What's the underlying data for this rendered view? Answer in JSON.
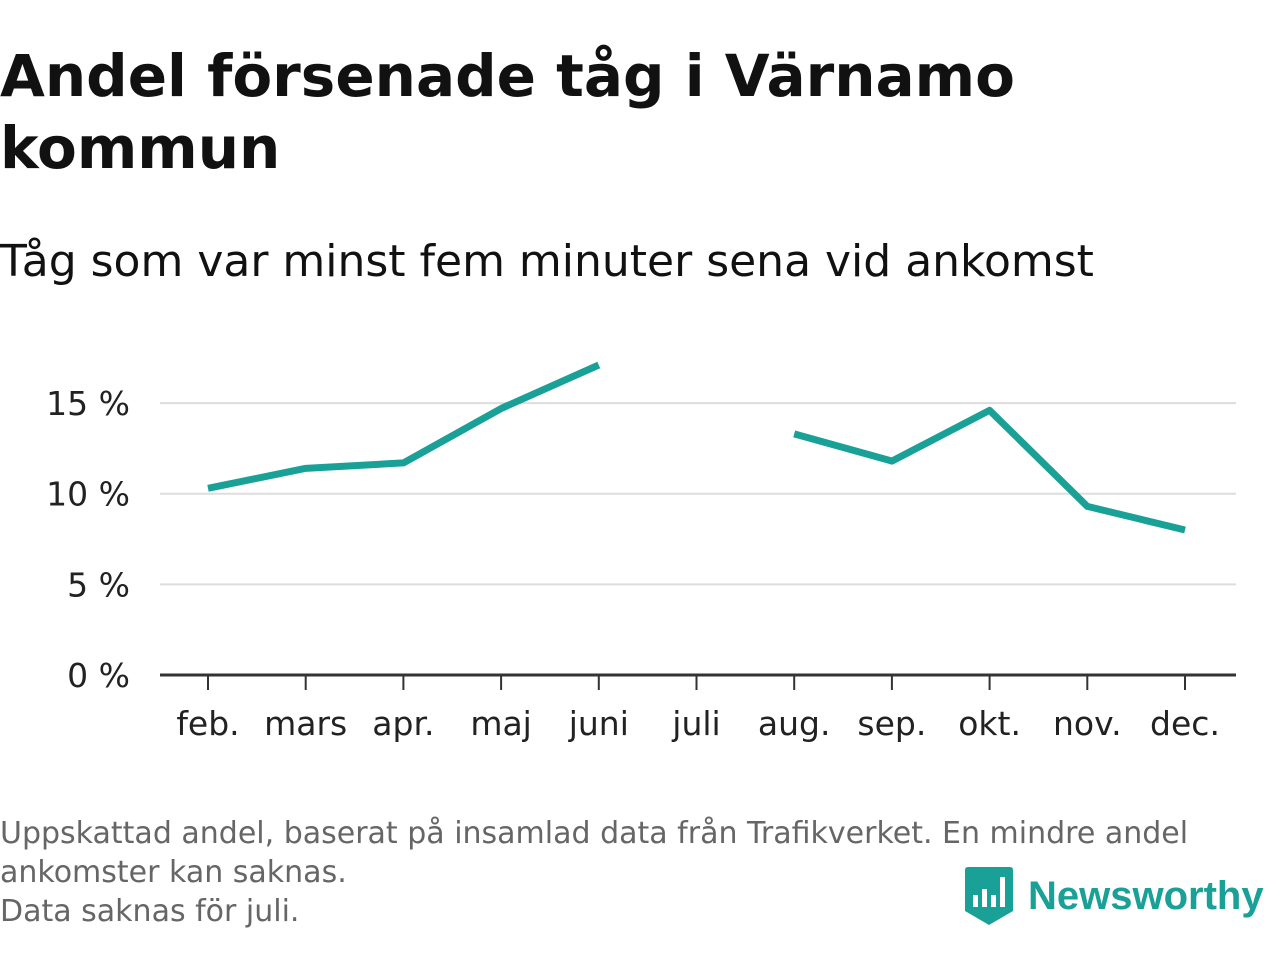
{
  "title": "Andel försenade tåg i Värnamo kommun",
  "subtitle": "Tåg som var minst fem minuter sena vid ankomst",
  "footer": {
    "line1": "Uppskattad andel, baserat på insamlad data från Trafikverket. En mindre andel",
    "line2": "ankomster kan saknas.",
    "line3": "Data saknas för juli."
  },
  "brand": {
    "name": "Newsworthy",
    "icon": "newsworthy-logo-icon",
    "color": "#1aa197"
  },
  "colors": {
    "line": "#1aa197",
    "grid": "#dddddd",
    "axis": "#333333"
  },
  "chart_data": {
    "type": "line",
    "categories": [
      "feb.",
      "mars",
      "apr.",
      "maj",
      "juni",
      "juli",
      "aug.",
      "sep.",
      "okt.",
      "nov.",
      "dec."
    ],
    "series": [
      {
        "values": [
          10.3,
          11.4,
          11.7,
          14.7,
          17.1,
          null,
          13.3,
          11.8,
          14.6,
          9.3,
          8.0
        ]
      }
    ],
    "yticks": [
      0,
      5,
      10,
      15
    ],
    "ytick_labels": [
      "0 %",
      "5 %",
      "10 %",
      "15 %"
    ],
    "ylim": [
      0,
      17.1
    ],
    "grid": true,
    "xlabel": "",
    "ylabel": ""
  }
}
